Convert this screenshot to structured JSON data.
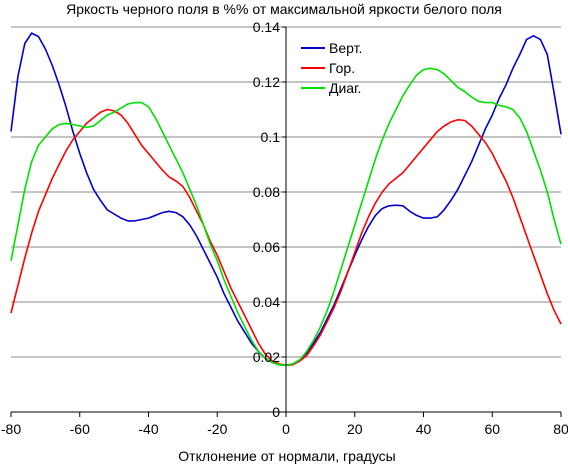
{
  "chart_data": {
    "type": "line",
    "title": "Яркость черного поля в %% от максимальной яркости белого поля",
    "xlabel": "Отклонение от нормали, градусы",
    "ylabel": "",
    "xlim": [
      -80,
      80
    ],
    "ylim": [
      0,
      0.14
    ],
    "x_ticks": [
      "-80",
      "-60",
      "-40",
      "-20",
      "0",
      "20",
      "40",
      "60",
      "80"
    ],
    "y_ticks": [
      "0",
      "0.02",
      "0.04",
      "0.06",
      "0.08",
      "0.1",
      "0.12",
      "0.14"
    ],
    "grid": "horizontal",
    "legend_position": "top-right",
    "series": [
      {
        "name": "Верт.",
        "color": "#0000cc",
        "points": [
          [
            -80,
            0.102
          ],
          [
            -78,
            0.122
          ],
          [
            -76,
            0.134
          ],
          [
            -74,
            0.1378
          ],
          [
            -72,
            0.1365
          ],
          [
            -70,
            0.132
          ],
          [
            -68,
            0.126
          ],
          [
            -66,
            0.119
          ],
          [
            -64,
            0.111
          ],
          [
            -62,
            0.102
          ],
          [
            -60,
            0.094
          ],
          [
            -58,
            0.087
          ],
          [
            -56,
            0.081
          ],
          [
            -54,
            0.077
          ],
          [
            -52,
            0.0735
          ],
          [
            -50,
            0.072
          ],
          [
            -48,
            0.0705
          ],
          [
            -46,
            0.0695
          ],
          [
            -44,
            0.0695
          ],
          [
            -42,
            0.07
          ],
          [
            -40,
            0.0705
          ],
          [
            -38,
            0.0715
          ],
          [
            -36,
            0.0725
          ],
          [
            -34,
            0.073
          ],
          [
            -32,
            0.0725
          ],
          [
            -30,
            0.071
          ],
          [
            -28,
            0.068
          ],
          [
            -26,
            0.064
          ],
          [
            -24,
            0.059
          ],
          [
            -22,
            0.054
          ],
          [
            -20,
            0.049
          ],
          [
            -18,
            0.043
          ],
          [
            -16,
            0.038
          ],
          [
            -14,
            0.033
          ],
          [
            -12,
            0.029
          ],
          [
            -10,
            0.025
          ],
          [
            -8,
            0.022
          ],
          [
            -6,
            0.0195
          ],
          [
            -4,
            0.018
          ],
          [
            -2,
            0.0172
          ],
          [
            0,
            0.017
          ],
          [
            2,
            0.0175
          ],
          [
            4,
            0.019
          ],
          [
            6,
            0.0215
          ],
          [
            8,
            0.025
          ],
          [
            10,
            0.029
          ],
          [
            12,
            0.034
          ],
          [
            14,
            0.039
          ],
          [
            16,
            0.045
          ],
          [
            18,
            0.051
          ],
          [
            20,
            0.057
          ],
          [
            22,
            0.0625
          ],
          [
            24,
            0.0675
          ],
          [
            26,
            0.0715
          ],
          [
            28,
            0.074
          ],
          [
            30,
            0.075
          ],
          [
            32,
            0.0752
          ],
          [
            34,
            0.075
          ],
          [
            36,
            0.073
          ],
          [
            38,
            0.0715
          ],
          [
            40,
            0.0705
          ],
          [
            42,
            0.0705
          ],
          [
            44,
            0.071
          ],
          [
            46,
            0.0735
          ],
          [
            48,
            0.077
          ],
          [
            50,
            0.081
          ],
          [
            52,
            0.086
          ],
          [
            54,
            0.091
          ],
          [
            56,
            0.097
          ],
          [
            58,
            0.103
          ],
          [
            60,
            0.108
          ],
          [
            62,
            0.114
          ],
          [
            64,
            0.119
          ],
          [
            66,
            0.125
          ],
          [
            68,
            0.13
          ],
          [
            70,
            0.1355
          ],
          [
            72,
            0.1368
          ],
          [
            74,
            0.1355
          ],
          [
            76,
            0.13
          ],
          [
            78,
            0.116
          ],
          [
            80,
            0.101
          ]
        ]
      },
      {
        "name": "Гор.",
        "color": "#ff0000",
        "points": [
          [
            -80,
            0.036
          ],
          [
            -78,
            0.046
          ],
          [
            -76,
            0.056
          ],
          [
            -74,
            0.065
          ],
          [
            -72,
            0.073
          ],
          [
            -70,
            0.079
          ],
          [
            -68,
            0.085
          ],
          [
            -66,
            0.09
          ],
          [
            -64,
            0.095
          ],
          [
            -62,
            0.099
          ],
          [
            -60,
            0.102
          ],
          [
            -58,
            0.105
          ],
          [
            -56,
            0.107
          ],
          [
            -54,
            0.109
          ],
          [
            -52,
            0.11
          ],
          [
            -50,
            0.1095
          ],
          [
            -48,
            0.108
          ],
          [
            -46,
            0.105
          ],
          [
            -44,
            0.101
          ],
          [
            -42,
            0.097
          ],
          [
            -40,
            0.094
          ],
          [
            -38,
            0.091
          ],
          [
            -36,
            0.088
          ],
          [
            -34,
            0.0855
          ],
          [
            -32,
            0.084
          ],
          [
            -30,
            0.082
          ],
          [
            -28,
            0.078
          ],
          [
            -26,
            0.073
          ],
          [
            -24,
            0.068
          ],
          [
            -22,
            0.062
          ],
          [
            -20,
            0.057
          ],
          [
            -18,
            0.051
          ],
          [
            -16,
            0.045
          ],
          [
            -14,
            0.04
          ],
          [
            -12,
            0.035
          ],
          [
            -10,
            0.03
          ],
          [
            -8,
            0.025
          ],
          [
            -6,
            0.021
          ],
          [
            -4,
            0.0185
          ],
          [
            -2,
            0.0175
          ],
          [
            0,
            0.017
          ],
          [
            2,
            0.0172
          ],
          [
            4,
            0.0185
          ],
          [
            6,
            0.0205
          ],
          [
            8,
            0.024
          ],
          [
            10,
            0.028
          ],
          [
            12,
            0.033
          ],
          [
            14,
            0.038
          ],
          [
            16,
            0.044
          ],
          [
            18,
            0.051
          ],
          [
            20,
            0.058
          ],
          [
            22,
            0.065
          ],
          [
            24,
            0.071
          ],
          [
            26,
            0.076
          ],
          [
            28,
            0.08
          ],
          [
            30,
            0.083
          ],
          [
            32,
            0.085
          ],
          [
            34,
            0.087
          ],
          [
            36,
            0.09
          ],
          [
            38,
            0.093
          ],
          [
            40,
            0.096
          ],
          [
            42,
            0.099
          ],
          [
            44,
            0.102
          ],
          [
            46,
            0.104
          ],
          [
            48,
            0.1055
          ],
          [
            50,
            0.1063
          ],
          [
            52,
            0.106
          ],
          [
            54,
            0.104
          ],
          [
            56,
            0.101
          ],
          [
            58,
            0.098
          ],
          [
            60,
            0.094
          ],
          [
            62,
            0.089
          ],
          [
            64,
            0.084
          ],
          [
            66,
            0.078
          ],
          [
            68,
            0.071
          ],
          [
            70,
            0.064
          ],
          [
            72,
            0.057
          ],
          [
            74,
            0.05
          ],
          [
            76,
            0.043
          ],
          [
            78,
            0.037
          ],
          [
            80,
            0.032
          ]
        ]
      },
      {
        "name": "Диаг.",
        "color": "#00e000",
        "points": [
          [
            -80,
            0.055
          ],
          [
            -78,
            0.068
          ],
          [
            -76,
            0.081
          ],
          [
            -74,
            0.091
          ],
          [
            -72,
            0.097
          ],
          [
            -70,
            0.1
          ],
          [
            -68,
            0.103
          ],
          [
            -66,
            0.1045
          ],
          [
            -64,
            0.105
          ],
          [
            -62,
            0.1045
          ],
          [
            -60,
            0.104
          ],
          [
            -58,
            0.1035
          ],
          [
            -56,
            0.104
          ],
          [
            -54,
            0.106
          ],
          [
            -52,
            0.108
          ],
          [
            -50,
            0.109
          ],
          [
            -48,
            0.1105
          ],
          [
            -46,
            0.112
          ],
          [
            -44,
            0.1125
          ],
          [
            -42,
            0.1125
          ],
          [
            -40,
            0.111
          ],
          [
            -38,
            0.107
          ],
          [
            -36,
            0.102
          ],
          [
            -34,
            0.097
          ],
          [
            -32,
            0.092
          ],
          [
            -30,
            0.087
          ],
          [
            -28,
            0.081
          ],
          [
            -26,
            0.075
          ],
          [
            -24,
            0.068
          ],
          [
            -22,
            0.061
          ],
          [
            -20,
            0.055
          ],
          [
            -18,
            0.048
          ],
          [
            -16,
            0.042
          ],
          [
            -14,
            0.036
          ],
          [
            -12,
            0.031
          ],
          [
            -10,
            0.026
          ],
          [
            -8,
            0.022
          ],
          [
            -6,
            0.0195
          ],
          [
            -4,
            0.018
          ],
          [
            -2,
            0.0172
          ],
          [
            0,
            0.017
          ],
          [
            2,
            0.0175
          ],
          [
            4,
            0.019
          ],
          [
            6,
            0.022
          ],
          [
            8,
            0.026
          ],
          [
            10,
            0.031
          ],
          [
            12,
            0.037
          ],
          [
            14,
            0.044
          ],
          [
            16,
            0.052
          ],
          [
            18,
            0.06
          ],
          [
            20,
            0.068
          ],
          [
            22,
            0.076
          ],
          [
            24,
            0.084
          ],
          [
            26,
            0.092
          ],
          [
            28,
            0.099
          ],
          [
            30,
            0.105
          ],
          [
            32,
            0.11
          ],
          [
            34,
            0.115
          ],
          [
            36,
            0.119
          ],
          [
            38,
            0.1225
          ],
          [
            40,
            0.1245
          ],
          [
            42,
            0.125
          ],
          [
            44,
            0.1245
          ],
          [
            46,
            0.123
          ],
          [
            48,
            0.1205
          ],
          [
            50,
            0.118
          ],
          [
            52,
            0.1165
          ],
          [
            54,
            0.1145
          ],
          [
            56,
            0.113
          ],
          [
            58,
            0.1125
          ],
          [
            60,
            0.1125
          ],
          [
            62,
            0.1115
          ],
          [
            64,
            0.111
          ],
          [
            66,
            0.11
          ],
          [
            68,
            0.107
          ],
          [
            70,
            0.102
          ],
          [
            72,
            0.095
          ],
          [
            74,
            0.088
          ],
          [
            76,
            0.08
          ],
          [
            78,
            0.07
          ],
          [
            80,
            0.061
          ]
        ]
      }
    ]
  }
}
